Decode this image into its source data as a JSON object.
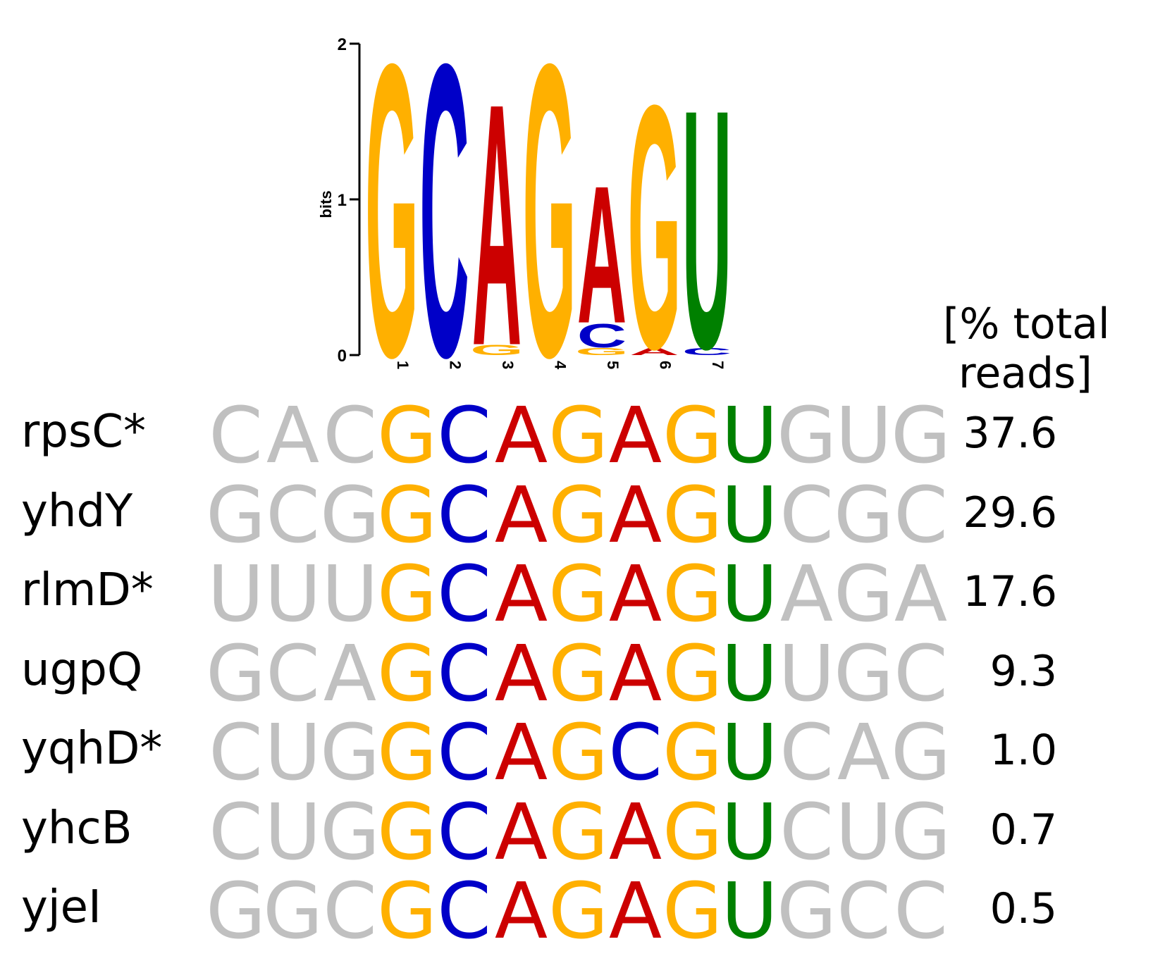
{
  "colors": {
    "G": "#ffb000",
    "C": "#0000c8",
    "A": "#cc0000",
    "U": "#008000",
    "flank": "#c0c0c0"
  },
  "logo": {
    "ylabel": "bits",
    "yticks": [
      "0",
      "1",
      "2"
    ],
    "ymax_bits": 2,
    "positions": [
      {
        "label": "1",
        "stack": [
          {
            "base": "G",
            "bits": 1.96
          }
        ]
      },
      {
        "label": "2",
        "stack": [
          {
            "base": "C",
            "bits": 1.96
          }
        ]
      },
      {
        "label": "3",
        "stack": [
          {
            "base": "G",
            "bits": 0.07
          },
          {
            "base": "A",
            "bits": 1.62
          }
        ]
      },
      {
        "label": "4",
        "stack": [
          {
            "base": "G",
            "bits": 1.96
          }
        ]
      },
      {
        "label": "5",
        "stack": [
          {
            "base": "G",
            "bits": 0.05
          },
          {
            "base": "C",
            "bits": 0.16
          },
          {
            "base": "A",
            "bits": 0.92
          }
        ]
      },
      {
        "label": "6",
        "stack": [
          {
            "base": "A",
            "bits": 0.05
          },
          {
            "base": "G",
            "bits": 1.63
          }
        ]
      },
      {
        "label": "7",
        "stack": [
          {
            "base": "C",
            "bits": 0.05
          },
          {
            "base": "U",
            "bits": 1.6
          }
        ]
      }
    ]
  },
  "table": {
    "header_line1": "[% total",
    "header_line2": "reads]",
    "rows": [
      {
        "gene": "rpsC*",
        "flank5": "CAC",
        "core": "GCAGAGU",
        "flank3": "GUG",
        "pct": "37.6"
      },
      {
        "gene": "yhdY",
        "flank5": "GCG",
        "core": "GCAGAGU",
        "flank3": "CGC",
        "pct": "29.6"
      },
      {
        "gene": "rlmD*",
        "flank5": "UUU",
        "core": "GCAGAGU",
        "flank3": "AGA",
        "pct": "17.6"
      },
      {
        "gene": "ugpQ",
        "flank5": "GCA",
        "core": "GCAGAGU",
        "flank3": "UGC",
        "pct": "9.3"
      },
      {
        "gene": "yqhD*",
        "flank5": "CUG",
        "core": "GCAGCGU",
        "flank3": "CAG",
        "pct": "1.0"
      },
      {
        "gene": "yhcB",
        "flank5": "CUG",
        "core": "GCAGAGU",
        "flank3": "CUG",
        "pct": "0.7"
      },
      {
        "gene": "yjeI",
        "flank5": "GGC",
        "core": "GCAGAGU",
        "flank3": "GCC",
        "pct": "0.5"
      }
    ]
  }
}
